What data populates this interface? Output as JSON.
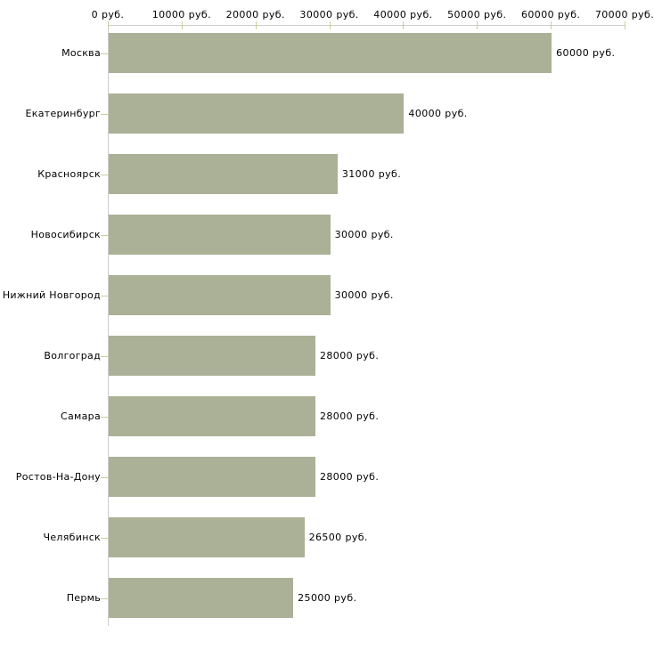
{
  "chart_data": {
    "type": "bar",
    "orientation": "horizontal",
    "title": "",
    "categories": [
      "Москва",
      "Екатеринбург",
      "Красноярск",
      "Новосибирск",
      "Нижний Новгород",
      "Волгоград",
      "Самара",
      "Ростов-На-Дону",
      "Челябинск",
      "Пермь"
    ],
    "values": [
      60000,
      40000,
      31000,
      30000,
      30000,
      28000,
      28000,
      28000,
      26500,
      25000
    ],
    "value_labels": [
      "60000 руб.",
      "40000 руб.",
      "31000 руб.",
      "30000 руб.",
      "30000 руб.",
      "28000 руб.",
      "28000 руб.",
      "28000 руб.",
      "26500 руб.",
      "25000 руб."
    ],
    "unit": "руб.",
    "x_axis": {
      "position": "top",
      "min": 0,
      "max": 70000,
      "ticks": [
        0,
        10000,
        20000,
        30000,
        40000,
        50000,
        60000,
        70000
      ],
      "tick_labels": [
        "0 руб.",
        "10000 руб.",
        "20000 руб.",
        "30000 руб.",
        "40000 руб.",
        "50000 руб.",
        "60000 руб.",
        "70000 руб."
      ]
    },
    "legend": "none",
    "grid": "off",
    "colors": {
      "bar": "#abb196",
      "axis_line": "#cccccc",
      "tick_mark": "#cccc99",
      "text": "#000000",
      "background": "#ffffff"
    }
  }
}
